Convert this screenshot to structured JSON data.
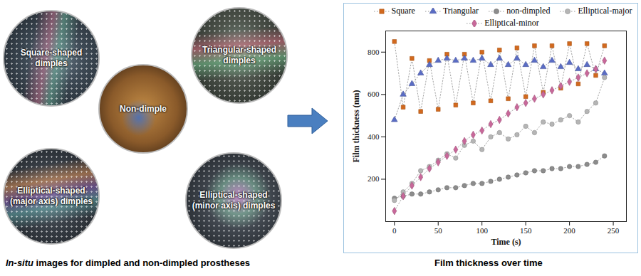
{
  "chart_data": {
    "type": "line",
    "x_label": "Time (s)",
    "y_label": "Film thickness (nm)",
    "legend": "top",
    "xlim": [
      -10,
      265
    ],
    "xticks": [
      0,
      50,
      100,
      150,
      200,
      250
    ],
    "ylim": [
      0,
      900
    ],
    "yticks": [
      200,
      400,
      600,
      800
    ],
    "x": [
      0,
      10,
      20,
      30,
      40,
      50,
      60,
      70,
      80,
      90,
      100,
      110,
      120,
      130,
      140,
      150,
      160,
      170,
      180,
      190,
      200,
      210,
      220,
      230,
      240
    ],
    "series": [
      {
        "name": "Square",
        "color": "#d2691e",
        "marker": "square",
        "line_style": "dotted",
        "values": [
          850,
          540,
          770,
          520,
          760,
          530,
          790,
          550,
          790,
          560,
          800,
          570,
          810,
          580,
          820,
          590,
          830,
          610,
          830,
          630,
          840,
          650,
          840,
          690,
          830
        ]
      },
      {
        "name": "Triangular",
        "color": "#5a6cc4",
        "marker": "triangle",
        "line_style": "dotted",
        "values": [
          480,
          600,
          650,
          700,
          740,
          760,
          770,
          760,
          770,
          760,
          770,
          740,
          770,
          740,
          770,
          740,
          760,
          730,
          760,
          730,
          750,
          720,
          740,
          720,
          700
        ]
      },
      {
        "name": "non-dimpled",
        "color": "#8c8c8c",
        "marker": "circle",
        "line_style": "dotted",
        "values": [
          110,
          120,
          130,
          130,
          140,
          150,
          160,
          160,
          170,
          180,
          180,
          190,
          200,
          210,
          220,
          230,
          240,
          240,
          250,
          250,
          260,
          260,
          270,
          280,
          310
        ]
      },
      {
        "name": "Elliptical-major",
        "color": "#b5b5b5",
        "marker": "circle",
        "line_style": "dotted",
        "values": [
          100,
          140,
          180,
          240,
          260,
          290,
          320,
          300,
          360,
          380,
          340,
          400,
          420,
          390,
          410,
          450,
          420,
          470,
          460,
          480,
          500,
          470,
          520,
          560,
          680
        ]
      },
      {
        "name": "Elliptical-minor",
        "color": "#c8689a",
        "marker": "diamond",
        "line_style": "dotted",
        "values": [
          50,
          120,
          170,
          210,
          250,
          280,
          310,
          340,
          380,
          410,
          430,
          460,
          480,
          510,
          540,
          560,
          580,
          600,
          620,
          640,
          660,
          680,
          700,
          720,
          760
        ]
      }
    ]
  },
  "images": [
    {
      "lines": [
        "Square-shaped",
        "dimples"
      ],
      "style": "dimpled"
    },
    {
      "lines": [
        "Non-dimple"
      ],
      "style": "plain"
    },
    {
      "lines": [
        "Triangular-shaped",
        "dimples"
      ],
      "style": "dimpled"
    },
    {
      "lines": [
        "Elliptical-shaped",
        "(major axis) dimples"
      ],
      "style": "dimpled"
    },
    {
      "lines": [
        "Elliptical-shaped",
        "(minor axis) dimples"
      ],
      "style": "dimpled"
    }
  ],
  "captions": {
    "left": {
      "italic": "In-situ",
      "rest": " images for dimpled and non-dimpled prostheses"
    },
    "right": "Film thickness over time"
  }
}
